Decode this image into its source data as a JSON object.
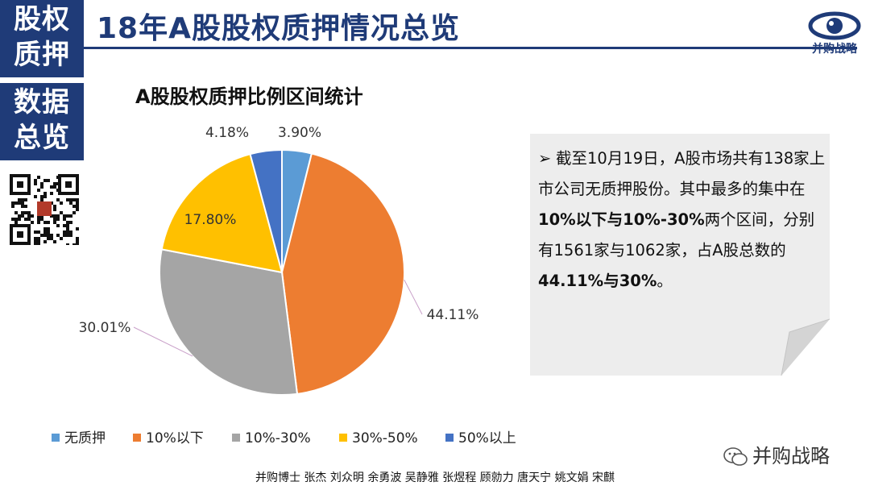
{
  "sidebar": {
    "top_line1": "股权",
    "top_line2": "质押",
    "bottom_line1": "数据",
    "bottom_line2": "总览"
  },
  "header": {
    "title": "18年A股股权质押情况总览",
    "logo_text": "并购战略"
  },
  "colors": {
    "brand_navy": "#1f3b78",
    "none": "#5b9bd5",
    "below10": "#ed7d31",
    "10to30": "#a5a5a5",
    "30to50": "#ffc000",
    "above50": "#4472c4"
  },
  "chart_data": {
    "type": "pie",
    "title": "A股股权质押比例区间统计",
    "categories": [
      "无质押",
      "10%以下",
      "10%-30%",
      "30%-50%",
      "50%以上"
    ],
    "values": [
      3.9,
      44.11,
      30.01,
      17.8,
      4.18
    ],
    "labels": [
      "3.90%",
      "44.11%",
      "30.01%",
      "17.80%",
      "4.18%"
    ],
    "legend_position": "bottom"
  },
  "note": {
    "bullet": "➢",
    "part1": "截至10月19日，A股市场共有138家上市公司无质押股份。其中最多的集中在",
    "bold1": "10%以下与10%-30%",
    "part2": "两个区间，分别有1561家与1062家，占A股总数的",
    "bold2": "44.11%与30%",
    "part3": "。"
  },
  "wechat": {
    "label": "并购战略"
  },
  "footer": {
    "credits": "并购博士 张杰 刘众明 余勇波 吴静雅 张煜程 顾勍力 唐天宁 姚文娟 宋麒"
  }
}
